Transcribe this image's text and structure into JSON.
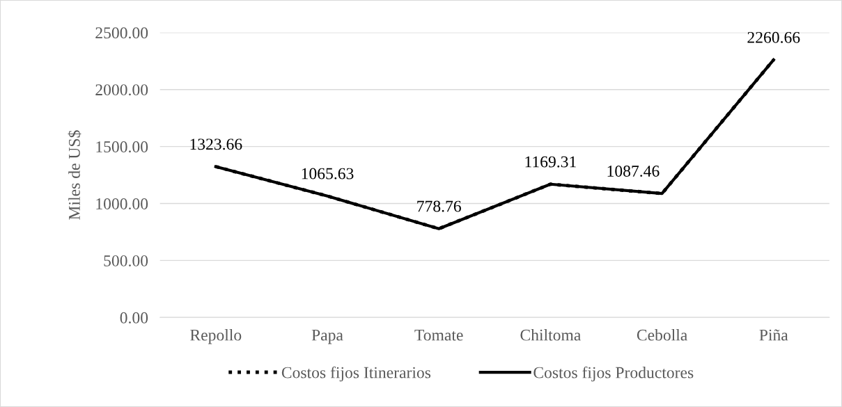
{
  "chart_data": {
    "type": "line",
    "ylabel": "Miles de US$",
    "categories": [
      "Repollo",
      "Papa",
      "Tomate",
      "Chiltoma",
      "Cebolla",
      "Piña"
    ],
    "series": [
      {
        "name": "Costos fijos Itinerarios",
        "color": "#000000",
        "line_style": "dotted",
        "values": [
          1323.66,
          1065.63,
          778.76,
          1169.31,
          1087.46,
          2260.66
        ]
      },
      {
        "name": "Costos fijos Productores",
        "color": "#000000",
        "line_style": "solid",
        "values": [
          1323.66,
          1065.63,
          778.76,
          1169.31,
          1087.46,
          2260.66
        ],
        "value_labels": [
          "1323.66",
          "1065.63",
          "778.76",
          "1169.31",
          "1087.46",
          "2260.66"
        ]
      }
    ],
    "ylim": [
      0,
      2500
    ],
    "yticks": [
      {
        "value": 0,
        "label": "0.00"
      },
      {
        "value": 500,
        "label": "500.00"
      },
      {
        "value": 1000,
        "label": "1000.00"
      },
      {
        "value": 1500,
        "label": "1500.00"
      },
      {
        "value": 2000,
        "label": "2000.00"
      },
      {
        "value": 2500,
        "label": "2500.00"
      }
    ],
    "grid": "y",
    "legend": "bottom",
    "marker": "none"
  }
}
